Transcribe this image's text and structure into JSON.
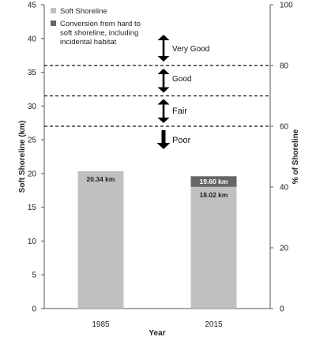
{
  "chart_data": {
    "type": "bar",
    "categories": [
      "1985",
      "2015"
    ],
    "series": [
      {
        "name": "Soft Shoreline",
        "values": [
          20.34,
          18.02
        ],
        "color": "#c0c0c0"
      },
      {
        "name": "Conversion from hard to soft shoreline, including incidental habitat",
        "values": [
          0,
          1.58
        ],
        "color": "#666666"
      }
    ],
    "data_labels": [
      {
        "text": "20.34 km",
        "category": "1985",
        "series": 0
      },
      {
        "text": "18.02 km",
        "category": "2015",
        "series": 0
      },
      {
        "text": "19.60 km",
        "category": "2015",
        "series": 1
      }
    ],
    "xlabel": "Year",
    "ylabel": "Soft Shoreline (km)",
    "y2label": "% of Shoreline",
    "ylim": [
      0,
      45
    ],
    "yticks": [
      0,
      5,
      10,
      15,
      20,
      25,
      30,
      35,
      40,
      45
    ],
    "y2lim": [
      0,
      100
    ],
    "y2ticks": [
      0,
      20,
      40,
      60,
      80,
      100
    ],
    "legend": {
      "placement": "top-left",
      "lines": [
        [
          "Soft Shoreline"
        ],
        [
          "Conversion from hard to",
          "soft shoreline, including",
          "incidental habitat"
        ]
      ]
    },
    "thresholds": [
      {
        "percent": 80
      },
      {
        "percent": 70
      },
      {
        "percent": 60
      }
    ],
    "bands": [
      {
        "label": "Very Good"
      },
      {
        "label": "Good"
      },
      {
        "label": "Fair"
      },
      {
        "label": "Poor"
      }
    ],
    "grid": false
  }
}
